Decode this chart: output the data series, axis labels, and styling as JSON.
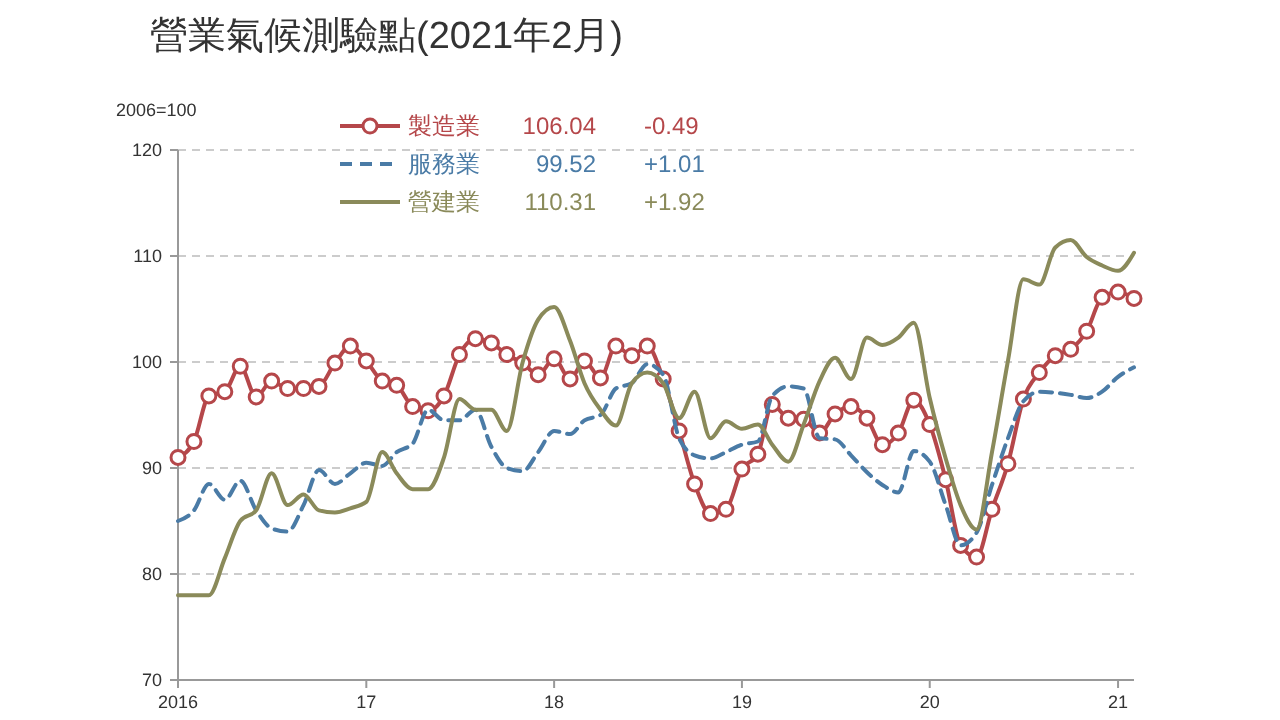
{
  "chart_data": {
    "type": "line",
    "title": "營業氣候測驗點(2021年2月)",
    "ylabel": "2006=100",
    "x": [
      "2016-01",
      "2016-02",
      "2016-03",
      "2016-04",
      "2016-05",
      "2016-06",
      "2016-07",
      "2016-08",
      "2016-09",
      "2016-10",
      "2016-11",
      "2016-12",
      "2017-01",
      "2017-02",
      "2017-03",
      "2017-04",
      "2017-05",
      "2017-06",
      "2017-07",
      "2017-08",
      "2017-09",
      "2017-10",
      "2017-11",
      "2017-12",
      "2018-01",
      "2018-02",
      "2018-03",
      "2018-04",
      "2018-05",
      "2018-06",
      "2018-07",
      "2018-08",
      "2018-09",
      "2018-10",
      "2018-11",
      "2018-12",
      "2019-01",
      "2019-02",
      "2019-03",
      "2019-04",
      "2019-05",
      "2019-06",
      "2019-07",
      "2019-08",
      "2019-09",
      "2019-10",
      "2019-11",
      "2019-12",
      "2020-01",
      "2020-02",
      "2020-03",
      "2020-04",
      "2020-05",
      "2020-06",
      "2020-07",
      "2020-08",
      "2020-09",
      "2020-10",
      "2020-11",
      "2020-12",
      "2021-01",
      "2021-02"
    ],
    "series": [
      {
        "name": "製造業",
        "color": "#b5474a",
        "marker": "circle",
        "line_style": "solid",
        "values": [
          91.0,
          92.5,
          96.8,
          97.2,
          99.6,
          96.7,
          98.2,
          97.5,
          97.5,
          97.7,
          99.9,
          101.5,
          100.1,
          98.2,
          97.8,
          95.8,
          95.4,
          96.8,
          100.7,
          102.2,
          101.8,
          100.7,
          99.9,
          98.8,
          100.3,
          98.4,
          100.1,
          98.5,
          101.5,
          100.6,
          101.5,
          98.4,
          93.5,
          88.5,
          85.7,
          86.1,
          89.9,
          91.3,
          96.0,
          94.7,
          94.6,
          93.3,
          95.1,
          95.8,
          94.7,
          92.2,
          93.3,
          96.4,
          94.1,
          88.9,
          82.7,
          81.6,
          86.1,
          90.4,
          96.5,
          99.0,
          100.6,
          101.2,
          102.9,
          106.1,
          106.6,
          106.0
        ]
      },
      {
        "name": "服務業",
        "color": "#4a7ba6",
        "marker": "none",
        "line_style": "dashed",
        "values": [
          85.0,
          86.0,
          88.5,
          87.0,
          88.8,
          86.0,
          84.3,
          84.0,
          86.5,
          89.8,
          88.5,
          89.5,
          90.5,
          90.2,
          91.5,
          92.3,
          95.5,
          94.5,
          94.5,
          95.5,
          92.0,
          90.0,
          89.7,
          91.5,
          93.5,
          93.2,
          94.5,
          95.0,
          97.5,
          98.0,
          99.8,
          98.8,
          92.8,
          91.2,
          90.9,
          91.5,
          92.2,
          92.5,
          96.8,
          97.7,
          97.5,
          92.8,
          92.7,
          91.2,
          89.6,
          88.4,
          87.7,
          91.6,
          90.6,
          86.5,
          82.7,
          83.9,
          88.4,
          92.8,
          96.3,
          97.2,
          97.1,
          96.9,
          96.6,
          97.2,
          98.6,
          99.5
        ]
      },
      {
        "name": "營建業",
        "color": "#8a8a5a",
        "marker": "none",
        "line_style": "solid",
        "values": [
          78.0,
          78.0,
          78.0,
          81.5,
          85.0,
          86.0,
          89.5,
          86.5,
          87.5,
          86.0,
          85.8,
          86.2,
          86.8,
          91.5,
          89.5,
          88.0,
          88.0,
          91.0,
          96.5,
          95.5,
          95.5,
          93.5,
          100.0,
          104.0,
          105.2,
          102.0,
          98.0,
          95.5,
          94.0,
          98.0,
          99.0,
          98.0,
          94.7,
          97.2,
          92.8,
          94.4,
          93.7,
          94.1,
          92.2,
          90.6,
          94.1,
          98.2,
          100.4,
          98.4,
          102.3,
          101.6,
          102.3,
          103.7,
          96.6,
          90.9,
          86.5,
          84.2,
          91.5,
          100.1,
          107.8,
          107.3,
          110.8,
          111.5,
          109.9,
          109.1,
          108.6,
          110.3
        ]
      }
    ],
    "annotations": [
      "106.04",
      "-0.49",
      "99.52",
      "+1.01",
      "110.31",
      "+1.92"
    ],
    "xlim": [
      "2016-01",
      "2021-02"
    ],
    "xticks": [
      {
        "value": "2016-01",
        "label": "2016"
      },
      {
        "value": "2017-01",
        "label": "17"
      },
      {
        "value": "2018-01",
        "label": "18"
      },
      {
        "value": "2019-01",
        "label": "19"
      },
      {
        "value": "2020-01",
        "label": "20"
      },
      {
        "value": "2021-01",
        "label": "21"
      }
    ],
    "ylim": [
      70,
      120
    ],
    "yticks": [
      70,
      80,
      90,
      100,
      110,
      120
    ],
    "grid": "y",
    "legend": "top"
  }
}
